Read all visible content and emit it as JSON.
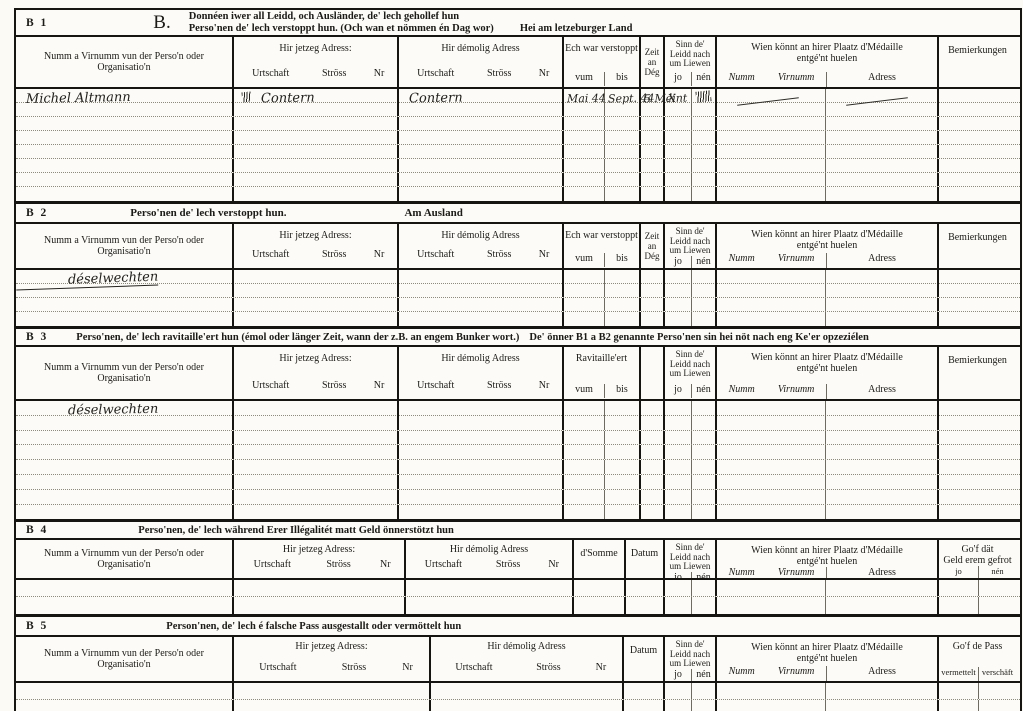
{
  "sections": [
    {
      "label": "B 1",
      "letter": "B.",
      "title_line1": "Donnéen iwer all Leidd, och Ausländer, de' lech gehollef hun",
      "title_line2": "Perso'nen de' lech verstoppt hun. (Och wan et nömmen én Dag wor)",
      "title_right": "Hei am letzeburger Land",
      "period_label": "Ech war verstoppt",
      "entry": {
        "name": "Michel Altmann",
        "jetzeg_adress": "Contern",
        "demolig_adress": "Contern",
        "vum": "Mai 44",
        "bis": "Sept. 44",
        "zeit": "5 Méint",
        "liewen_jo": "X"
      }
    },
    {
      "label": "B 2",
      "title": "Perso'nen de' lech verstoppt hun.",
      "title_right": "Am Ausland",
      "period_label": "Ech war verstoppt",
      "entry": {
        "name": "déselwechten"
      }
    },
    {
      "label": "B 3",
      "title": "Perso'nen, de' lech ravitaille'ert hun (émol oder länger Zeit, wann der z.B. an engem Bunker wort.)",
      "title_right": "De' önner B1 a B2 genannte Perso'nen sin hei nöt nach eng Ke'er opzeziélen",
      "period_label": "Ravitaille'ert",
      "entry": {
        "name": "déselwechten"
      }
    },
    {
      "label": "B 4",
      "title": "Perso'nen, de' lech während Erer Illégalitét matt Geld önnerstötzt hun",
      "somme_label": "d'Somme",
      "datum_label": "Datum",
      "gof_line1": "Go'f dät",
      "gof_line2": "Geld erem gefrot",
      "gof_sub1": "jo",
      "gof_sub2": "nén"
    },
    {
      "label": "B 5",
      "title": "Person'nen, de' lech é falsche Pass ausgestallt oder vermöttelt hun",
      "datum_label": "Datum",
      "gof_line1": "Go'f de Pass",
      "gof_sub1": "vermettelt",
      "gof_sub2": "verschäft"
    }
  ],
  "common": {
    "name_header": "Numm a Virnumm vun der Perso'n oder Organisatio'n",
    "jetzeg_header": "Hir jetzeg Adress:",
    "demolig_header": "Hir démolig Adress",
    "urtschaft": "Urtschaft",
    "stross": "Ströss",
    "nr": "Nr",
    "vum": "vum",
    "bis": "bis",
    "zeit_l1": "Zeit",
    "zeit_l2": "an",
    "zeit_l3": "Dég",
    "sinn_l1": "Sinn  de'",
    "sinn_l2": "Leidd  nach",
    "sinn_l3": "um Liewen",
    "jo": "jo",
    "nen": "nén",
    "wien_l1": "Wien könnt an hirer Plaatz d'Médaille",
    "wien_l2": "entgé'nt huelen",
    "numm": "Numm",
    "virnumm": "Virnumm",
    "adress": "Adress",
    "bemierkungen": "Bemierkungen"
  },
  "colors": {
    "ink": "#1c1b18",
    "paper": "#fbfaf5",
    "handwriting": "#23211d"
  }
}
